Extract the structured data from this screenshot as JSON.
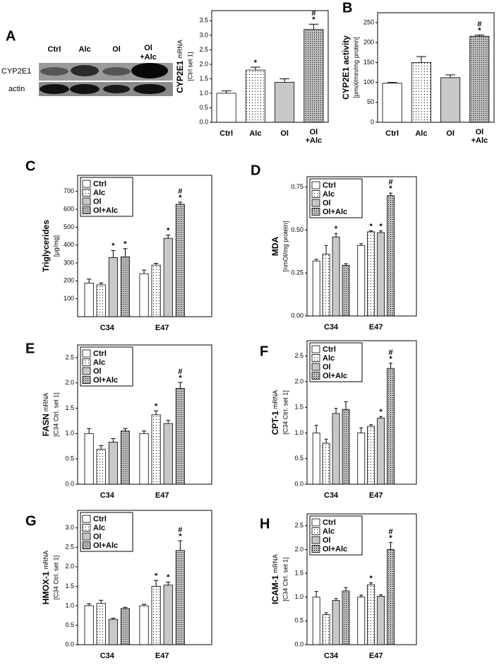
{
  "blot": {
    "panel": "A",
    "lanes": [
      "Ctrl",
      "Alc",
      "Ol",
      [
        "Ol",
        "+Alc"
      ]
    ],
    "rows": [
      "CYP2E1",
      "actin"
    ]
  },
  "chart_data": [
    {
      "type": "bar",
      "ylabel": "CYP2E1",
      "ylabel_sub": "mRNA",
      "ylabel_unit": "[Ctrl set 1]",
      "categories": [
        "Ctrl",
        "Alc",
        "Ol",
        [
          "Ol",
          "+Alc"
        ]
      ],
      "series": [
        {
          "values": [
            1.0,
            1.8,
            1.38,
            3.2
          ],
          "errors": [
            0.08,
            0.1,
            0.12,
            0.18
          ],
          "marks": [
            null,
            [
              "*"
            ],
            null,
            [
              "#",
              "*"
            ]
          ],
          "colors": [
            "#ffffff",
            "#ffffff",
            "#c8c8c8",
            "#bdbdbd"
          ],
          "patterns": [
            "solid",
            "dots",
            "solid",
            "dense"
          ]
        }
      ],
      "ylim": [
        0,
        3.85
      ],
      "yticks": [
        {
          "value": 0,
          "label": "0.0"
        },
        0.5,
        {
          "value": 1,
          "label": "1.0"
        },
        1.5,
        {
          "value": 2,
          "label": "2.0"
        },
        2.5,
        {
          "value": 3,
          "label": "3.0"
        },
        3.5
      ]
    },
    {
      "type": "bar",
      "panel": "B",
      "ylabel": "CYP2E1 activity",
      "ylabel_unit": "[pmol/min/mg protein]",
      "categories": [
        "Ctrl",
        "Alc",
        "Ol",
        [
          "Ol",
          "+Alc"
        ]
      ],
      "series": [
        {
          "values": [
            98,
            150,
            112,
            216
          ],
          "errors": [
            2,
            15,
            7,
            3
          ],
          "marks": [
            null,
            null,
            null,
            [
              "#",
              "*"
            ]
          ],
          "colors": [
            "#ffffff",
            "#ffffff",
            "#c8c8c8",
            "#bdbdbd"
          ],
          "patterns": [
            "solid",
            "dots",
            "solid",
            "dense"
          ]
        }
      ],
      "ylim": [
        0,
        275
      ],
      "yticks": [
        0,
        50,
        100,
        150,
        200,
        250
      ]
    },
    {
      "type": "bar",
      "panel": "C",
      "ylabel": "Triglycerides",
      "ylabel_unit": "[µg/mg]",
      "categories": [
        "C34",
        "E47"
      ],
      "series": [
        {
          "name": "Ctrl",
          "color": "#ffffff",
          "pattern": "solid",
          "values": [
            188,
            240
          ],
          "errors": [
            22,
            20
          ],
          "marks": [
            null,
            null
          ]
        },
        {
          "name": "Alc",
          "color": "#ffffff",
          "pattern": "dots",
          "values": [
            178,
            288
          ],
          "errors": [
            10,
            10
          ],
          "marks": [
            null,
            null
          ]
        },
        {
          "name": "Ol",
          "color": "#c8c8c8",
          "pattern": "solid",
          "values": [
            330,
            438
          ],
          "errors": [
            40,
            18
          ],
          "marks": [
            [
              "*"
            ],
            [
              "*"
            ]
          ]
        },
        {
          "name": "Ol+Alc",
          "color": "#bdbdbd",
          "pattern": "dense",
          "values": [
            335,
            628
          ],
          "errors": [
            45,
            12
          ],
          "marks": [
            [
              "*"
            ],
            [
              "#",
              "*"
            ]
          ]
        }
      ],
      "ylim": [
        0,
        790
      ],
      "yticks": [
        100,
        200,
        300,
        400,
        500,
        600,
        700
      ],
      "legend": "upper-left"
    },
    {
      "type": "bar",
      "panel": "D",
      "ylabel": "MDA",
      "ylabel_unit": "[nmOl/mg protein]",
      "categories": [
        "C34",
        "E47"
      ],
      "series": [
        {
          "name": "Ctrl",
          "color": "#ffffff",
          "pattern": "solid",
          "values": [
            0.32,
            0.41
          ],
          "errors": [
            0.01,
            0.01
          ],
          "marks": [
            null,
            null
          ]
        },
        {
          "name": "Alc",
          "color": "#ffffff",
          "pattern": "dots",
          "values": [
            0.36,
            0.49
          ],
          "errors": [
            0.05,
            0.005
          ],
          "marks": [
            null,
            [
              "*"
            ]
          ]
        },
        {
          "name": "Ol",
          "color": "#c8c8c8",
          "pattern": "solid",
          "values": [
            0.46,
            0.485
          ],
          "errors": [
            0.02,
            0.01
          ],
          "marks": [
            [
              "*"
            ],
            [
              "*"
            ]
          ]
        },
        {
          "name": "Ol+Alc",
          "color": "#bdbdbd",
          "pattern": "dense",
          "values": [
            0.295,
            0.7
          ],
          "errors": [
            0.01,
            0.015
          ],
          "marks": [
            null,
            [
              "#",
              "*"
            ]
          ]
        }
      ],
      "ylim": [
        0,
        0.81
      ],
      "yticks": [
        {
          "value": 0,
          "label": "0.00"
        },
        0.25,
        {
          "value": 0.5,
          "label": "0.50"
        },
        0.75
      ],
      "legend": "upper-left"
    },
    {
      "type": "bar",
      "panel": "E",
      "ylabel": "FASN",
      "ylabel_sub": "mRNA",
      "ylabel_unit": "[C34 Ctrl. set 1]",
      "categories": [
        "C34",
        "E47"
      ],
      "series": [
        {
          "name": "Ctrl",
          "color": "#ffffff",
          "pattern": "solid",
          "values": [
            1.0,
            1.0
          ],
          "errors": [
            0.1,
            0.05
          ],
          "marks": [
            null,
            null
          ]
        },
        {
          "name": "Alc",
          "color": "#ffffff",
          "pattern": "dots",
          "values": [
            0.69,
            1.37
          ],
          "errors": [
            0.07,
            0.08
          ],
          "marks": [
            null,
            [
              "*"
            ]
          ]
        },
        {
          "name": "Ol",
          "color": "#c8c8c8",
          "pattern": "solid",
          "values": [
            0.83,
            1.2
          ],
          "errors": [
            0.07,
            0.06
          ],
          "marks": [
            null,
            null
          ]
        },
        {
          "name": "Ol+Alc",
          "color": "#bdbdbd",
          "pattern": "dense",
          "values": [
            1.05,
            1.89
          ],
          "errors": [
            0.05,
            0.12
          ],
          "marks": [
            null,
            [
              "#",
              "*"
            ]
          ]
        }
      ],
      "ylim": [
        0,
        2.75
      ],
      "yticks": [
        {
          "value": 0,
          "label": "0.0"
        },
        0.5,
        {
          "value": 1,
          "label": "1.0"
        },
        1.5,
        {
          "value": 2,
          "label": "2.0"
        },
        2.5
      ],
      "legend": "upper-left"
    },
    {
      "type": "bar",
      "panel": "F",
      "ylabel": "CPT-1",
      "ylabel_sub": "mRNA",
      "ylabel_unit": "[C34 Ctrl. set 1]",
      "categories": [
        "C34",
        "E47"
      ],
      "series": [
        {
          "name": "Ctrl",
          "color": "#ffffff",
          "pattern": "solid",
          "values": [
            1.0,
            1.0
          ],
          "errors": [
            0.15,
            0.1
          ],
          "marks": [
            null,
            null
          ]
        },
        {
          "name": "Alc",
          "color": "#ffffff",
          "pattern": "dots",
          "values": [
            0.8,
            1.13
          ],
          "errors": [
            0.08,
            0.03
          ],
          "marks": [
            null,
            null
          ]
        },
        {
          "name": "Ol",
          "color": "#c8c8c8",
          "pattern": "solid",
          "values": [
            1.38,
            1.29
          ],
          "errors": [
            0.1,
            0.03
          ],
          "marks": [
            null,
            [
              "*"
            ]
          ]
        },
        {
          "name": "Ol+Alc",
          "color": "#bdbdbd",
          "pattern": "dense",
          "values": [
            1.46,
            2.26
          ],
          "errors": [
            0.15,
            0.1
          ],
          "marks": [
            null,
            [
              "#",
              "*"
            ]
          ]
        }
      ],
      "ylim": [
        0,
        2.8
      ],
      "yticks": [
        {
          "value": 0,
          "label": "0.0"
        },
        0.5,
        {
          "value": 1,
          "label": "1.0"
        },
        1.5,
        {
          "value": 2,
          "label": "2.0"
        },
        2.5
      ],
      "legend": "upper-left"
    },
    {
      "type": "bar",
      "panel": "G",
      "ylabel": "HMOX-1",
      "ylabel_sub": "mRNA",
      "ylabel_unit": "[C34 Ctrl. set 1]",
      "categories": [
        "C34",
        "E47"
      ],
      "series": [
        {
          "name": "Ctrl",
          "color": "#ffffff",
          "pattern": "solid",
          "values": [
            1.0,
            1.0
          ],
          "errors": [
            0.05,
            0.04
          ],
          "marks": [
            null,
            null
          ]
        },
        {
          "name": "Alc",
          "color": "#ffffff",
          "pattern": "dots",
          "values": [
            1.06,
            1.5
          ],
          "errors": [
            0.08,
            0.15
          ],
          "marks": [
            null,
            [
              "*"
            ]
          ]
        },
        {
          "name": "Ol",
          "color": "#c8c8c8",
          "pattern": "solid",
          "values": [
            0.65,
            1.53
          ],
          "errors": [
            0.03,
            0.08
          ],
          "marks": [
            null,
            [
              "*"
            ]
          ]
        },
        {
          "name": "Ol+Alc",
          "color": "#bdbdbd",
          "pattern": "dense",
          "values": [
            0.93,
            2.42
          ],
          "errors": [
            0.03,
            0.25
          ],
          "marks": [
            null,
            [
              "#",
              "*"
            ]
          ]
        }
      ],
      "ylim": [
        0,
        3.45
      ],
      "yticks": [
        {
          "value": 0,
          "label": "0.0"
        },
        0.5,
        {
          "value": 1,
          "label": "1.0"
        },
        1.5,
        {
          "value": 2,
          "label": "2.0"
        },
        2.5,
        {
          "value": 3,
          "label": "3.0"
        }
      ],
      "legend": "upper-left"
    },
    {
      "type": "bar",
      "panel": "H",
      "ylabel": "ICAM-1",
      "ylabel_sub": "mRNA",
      "ylabel_unit": "[C34 Ctrl. set 1]",
      "categories": [
        "C34",
        "E47"
      ],
      "series": [
        {
          "name": "Ctrl",
          "color": "#ffffff",
          "pattern": "solid",
          "values": [
            1.0,
            1.0
          ],
          "errors": [
            0.12,
            0.04
          ],
          "marks": [
            null,
            null
          ]
        },
        {
          "name": "Alc",
          "color": "#ffffff",
          "pattern": "dots",
          "values": [
            0.63,
            1.26
          ],
          "errors": [
            0.04,
            0.04
          ],
          "marks": [
            null,
            [
              "*"
            ]
          ]
        },
        {
          "name": "Ol",
          "color": "#c8c8c8",
          "pattern": "solid",
          "values": [
            0.93,
            1.02
          ],
          "errors": [
            0.04,
            0.03
          ],
          "marks": [
            null,
            null
          ]
        },
        {
          "name": "Ol+Alc",
          "color": "#bdbdbd",
          "pattern": "dense",
          "values": [
            1.13,
            2.0
          ],
          "errors": [
            0.07,
            0.15
          ],
          "marks": [
            null,
            [
              "#",
              "*"
            ]
          ]
        }
      ],
      "ylim": [
        0,
        2.75
      ],
      "yticks": [
        {
          "value": 0,
          "label": "0.0"
        },
        0.5,
        {
          "value": 1,
          "label": "1.0"
        },
        1.5,
        {
          "value": 2,
          "label": "2.0"
        },
        2.5
      ],
      "legend": "upper-left"
    }
  ]
}
